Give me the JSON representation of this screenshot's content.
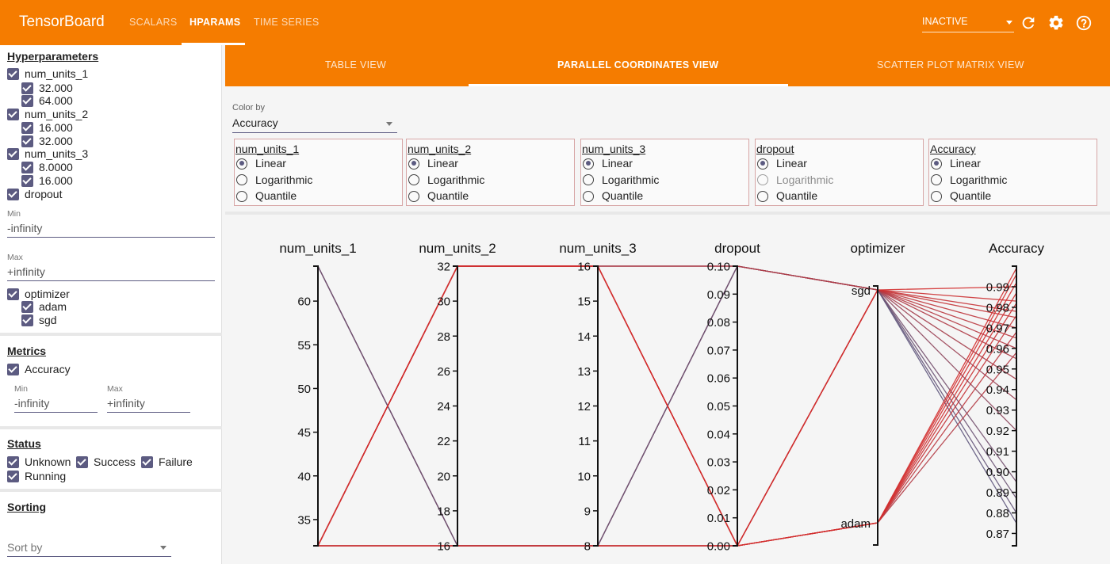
{
  "app": {
    "title": "TensorBoard",
    "tabs": [
      "SCALARS",
      "HPARAMS",
      "TIME SERIES"
    ],
    "active_tab": "HPARAMS",
    "run_status": "INACTIVE",
    "icons": [
      "refresh-icon",
      "settings-gear-icon",
      "help-icon"
    ]
  },
  "sidebar": {
    "hyperparameters_title": "Hyperparameters",
    "hparams": [
      {
        "name": "num_units_1",
        "values": [
          "32.000",
          "64.000"
        ]
      },
      {
        "name": "num_units_2",
        "values": [
          "16.000",
          "32.000"
        ]
      },
      {
        "name": "num_units_3",
        "values": [
          "8.0000",
          "16.000"
        ]
      }
    ],
    "dropout": {
      "name": "dropout",
      "min_label": "Min",
      "min_value": "-infinity",
      "max_label": "Max",
      "max_value": "+infinity"
    },
    "optimizer": {
      "name": "optimizer",
      "values": [
        "adam",
        "sgd"
      ]
    },
    "metrics_title": "Metrics",
    "metric": {
      "name": "Accuracy",
      "min_label": "Min",
      "min_value": "-infinity",
      "max_label": "Max",
      "max_value": "+infinity"
    },
    "status_title": "Status",
    "status": [
      "Unknown",
      "Success",
      "Failure",
      "Running"
    ],
    "sorting_title": "Sorting",
    "sort_placeholder": "Sort by"
  },
  "view_tabs": [
    "TABLE VIEW",
    "PARALLEL COORDINATES VIEW",
    "SCATTER PLOT MATRIX VIEW"
  ],
  "active_view": "PARALLEL COORDINATES VIEW",
  "controls": {
    "color_by_label": "Color by",
    "color_by_value": "Accuracy",
    "scale_options": [
      "Linear",
      "Logarithmic",
      "Quantile"
    ],
    "scales": [
      {
        "name": "num_units_1",
        "selected": "Linear",
        "disabled": []
      },
      {
        "name": "num_units_2",
        "selected": "Linear",
        "disabled": []
      },
      {
        "name": "num_units_3",
        "selected": "Linear",
        "disabled": []
      },
      {
        "name": "dropout",
        "selected": "Linear",
        "disabled": [
          "Logarithmic"
        ]
      },
      {
        "name": "Accuracy",
        "selected": "Linear",
        "disabled": []
      }
    ]
  },
  "colors": {
    "accent": "#f57c00",
    "checkbox": "#5c5b81",
    "high": "#d32f2f",
    "low": "#5c5b81"
  },
  "chart_data": {
    "type": "parallel_coordinates",
    "axes": [
      {
        "name": "num_units_1",
        "kind": "linear",
        "range": [
          32,
          64
        ],
        "ticks": [
          "60",
          "55",
          "50",
          "45",
          "40",
          "35"
        ],
        "tick_values": [
          60,
          55,
          50,
          45,
          40,
          35
        ]
      },
      {
        "name": "num_units_2",
        "kind": "linear",
        "range": [
          16,
          32
        ],
        "ticks": [
          "32",
          "30",
          "28",
          "26",
          "24",
          "22",
          "20",
          "18",
          "16"
        ],
        "tick_values": [
          32,
          30,
          28,
          26,
          24,
          22,
          20,
          18,
          16
        ]
      },
      {
        "name": "num_units_3",
        "kind": "linear",
        "range": [
          8,
          16
        ],
        "ticks": [
          "16",
          "15",
          "14",
          "13",
          "12",
          "11",
          "10",
          "9",
          "8"
        ],
        "tick_values": [
          16,
          15,
          14,
          13,
          12,
          11,
          10,
          9,
          8
        ]
      },
      {
        "name": "dropout",
        "kind": "linear",
        "range": [
          0,
          0.1
        ],
        "ticks": [
          "0.10",
          "0.09",
          "0.08",
          "0.07",
          "0.06",
          "0.05",
          "0.04",
          "0.03",
          "0.02",
          "0.01",
          "0.00"
        ],
        "tick_values": [
          0.1,
          0.09,
          0.08,
          0.07,
          0.06,
          0.05,
          0.04,
          0.03,
          0.02,
          0.01,
          0.0
        ]
      },
      {
        "name": "optimizer",
        "kind": "categorical",
        "categories": [
          "sgd",
          "adam"
        ]
      },
      {
        "name": "Accuracy",
        "kind": "linear",
        "range": [
          0.864,
          1.0
        ],
        "ticks": [
          "0.99",
          "0.98",
          "0.97",
          "0.96",
          "0.95",
          "0.94",
          "0.93",
          "0.92",
          "0.91",
          "0.90",
          "0.89",
          "0.88",
          "0.87"
        ],
        "tick_values": [
          0.99,
          0.98,
          0.97,
          0.96,
          0.95,
          0.94,
          0.93,
          0.92,
          0.91,
          0.9,
          0.89,
          0.88,
          0.87
        ]
      }
    ],
    "runs": [
      {
        "num_units_1": 64,
        "num_units_2": 16,
        "num_units_3": 8,
        "dropout": 0.1,
        "optimizer": "sgd",
        "Accuracy": 0.875
      },
      {
        "num_units_1": 64,
        "num_units_2": 16,
        "num_units_3": 8,
        "dropout": 0.1,
        "optimizer": "sgd",
        "Accuracy": 0.88
      },
      {
        "num_units_1": 64,
        "num_units_2": 16,
        "num_units_3": 8,
        "dropout": 0.1,
        "optimizer": "sgd",
        "Accuracy": 0.887
      },
      {
        "num_units_1": 64,
        "num_units_2": 16,
        "num_units_3": 8,
        "dropout": 0.1,
        "optimizer": "sgd",
        "Accuracy": 0.895
      },
      {
        "num_units_1": 32,
        "num_units_2": 32,
        "num_units_3": 16,
        "dropout": 0.1,
        "optimizer": "sgd",
        "Accuracy": 0.92
      },
      {
        "num_units_1": 32,
        "num_units_2": 32,
        "num_units_3": 16,
        "dropout": 0.1,
        "optimizer": "sgd",
        "Accuracy": 0.935
      },
      {
        "num_units_1": 32,
        "num_units_2": 32,
        "num_units_3": 16,
        "dropout": 0.1,
        "optimizer": "sgd",
        "Accuracy": 0.945
      },
      {
        "num_units_1": 32,
        "num_units_2": 32,
        "num_units_3": 16,
        "dropout": 0.1,
        "optimizer": "sgd",
        "Accuracy": 0.955
      },
      {
        "num_units_1": 32,
        "num_units_2": 16,
        "num_units_3": 8,
        "dropout": 0.0,
        "optimizer": "sgd",
        "Accuracy": 0.96
      },
      {
        "num_units_1": 32,
        "num_units_2": 16,
        "num_units_3": 8,
        "dropout": 0.0,
        "optimizer": "sgd",
        "Accuracy": 0.965
      },
      {
        "num_units_1": 32,
        "num_units_2": 16,
        "num_units_3": 8,
        "dropout": 0.0,
        "optimizer": "sgd",
        "Accuracy": 0.97
      },
      {
        "num_units_1": 32,
        "num_units_2": 16,
        "num_units_3": 8,
        "dropout": 0.0,
        "optimizer": "sgd",
        "Accuracy": 0.975
      },
      {
        "num_units_1": 32,
        "num_units_2": 16,
        "num_units_3": 8,
        "dropout": 0.0,
        "optimizer": "sgd",
        "Accuracy": 0.978
      },
      {
        "num_units_1": 32,
        "num_units_2": 16,
        "num_units_3": 8,
        "dropout": 0.0,
        "optimizer": "sgd",
        "Accuracy": 0.983
      },
      {
        "num_units_1": 32,
        "num_units_2": 32,
        "num_units_3": 16,
        "dropout": 0.0,
        "optimizer": "sgd",
        "Accuracy": 0.99
      },
      {
        "num_units_1": 32,
        "num_units_2": 32,
        "num_units_3": 16,
        "dropout": 0.0,
        "optimizer": "adam",
        "Accuracy": 0.958
      },
      {
        "num_units_1": 32,
        "num_units_2": 32,
        "num_units_3": 16,
        "dropout": 0.0,
        "optimizer": "adam",
        "Accuracy": 0.968
      },
      {
        "num_units_1": 32,
        "num_units_2": 32,
        "num_units_3": 16,
        "dropout": 0.0,
        "optimizer": "adam",
        "Accuracy": 0.976
      },
      {
        "num_units_1": 32,
        "num_units_2": 32,
        "num_units_3": 16,
        "dropout": 0.0,
        "optimizer": "adam",
        "Accuracy": 0.982
      },
      {
        "num_units_1": 32,
        "num_units_2": 32,
        "num_units_3": 16,
        "dropout": 0.0,
        "optimizer": "adam",
        "Accuracy": 0.987
      },
      {
        "num_units_1": 32,
        "num_units_2": 32,
        "num_units_3": 16,
        "dropout": 0.0,
        "optimizer": "adam",
        "Accuracy": 0.992
      },
      {
        "num_units_1": 32,
        "num_units_2": 32,
        "num_units_3": 16,
        "dropout": 0.0,
        "optimizer": "adam",
        "Accuracy": 0.996
      },
      {
        "num_units_1": 32,
        "num_units_2": 32,
        "num_units_3": 16,
        "dropout": 0.0,
        "optimizer": "adam",
        "Accuracy": 0.999
      }
    ]
  }
}
